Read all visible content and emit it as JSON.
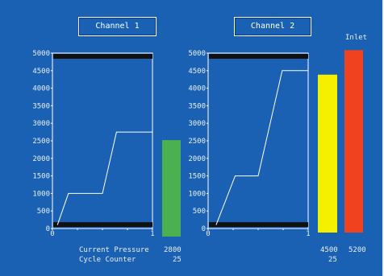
{
  "channel1": {
    "button_label": "Channel 1",
    "y_ticks": [
      "5000",
      "4500",
      "4000",
      "3500",
      "3000",
      "2500",
      "2000",
      "1500",
      "1000",
      "500",
      "0"
    ],
    "x_tick_labels": [
      "0",
      "1"
    ],
    "plot_values": [
      100,
      1000,
      1000,
      2750,
      2750
    ],
    "bar": {
      "value": 2750,
      "color": "#4bb04f"
    }
  },
  "channel2": {
    "button_label": "Channel 2",
    "y_ticks": [
      "5000",
      "4500",
      "4000",
      "3500",
      "3000",
      "2500",
      "2000",
      "1500",
      "1000",
      "500",
      "0"
    ],
    "x_tick_labels": [
      "0",
      "1"
    ],
    "plot_values": [
      100,
      1500,
      1500,
      4500,
      4500
    ],
    "bar_main": {
      "value": 4500,
      "color": "#f5f000",
      "readout": "4500",
      "sub_readout": "25"
    },
    "bar_inlet": {
      "value": 5200,
      "color": "#f0421e",
      "label": "Inlet",
      "readout": "5200"
    }
  },
  "readouts": {
    "current_pressure_label": "Current Pressure",
    "current_pressure_value": "2800",
    "cycle_counter_label": "Cycle Counter",
    "cycle_counter_value": "25"
  },
  "colors": {
    "background": "#1a61b4",
    "plot_line": "#ffffff",
    "limit_band": "#111111"
  }
}
